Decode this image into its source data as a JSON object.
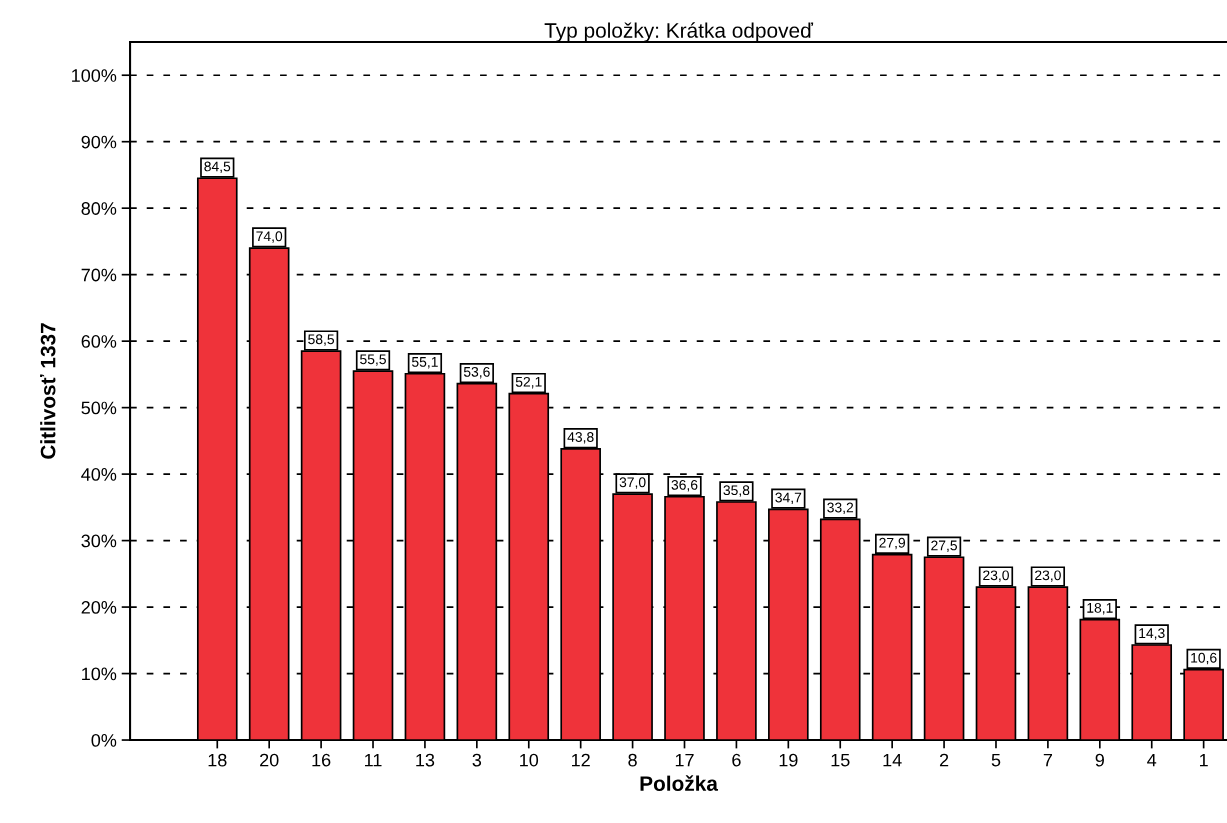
{
  "chart_data": {
    "type": "bar",
    "title": "Typ položky: Krátka odpoveď",
    "xlabel": "Položka",
    "ylabel": "Citlivosť 1337",
    "categories": [
      "18",
      "20",
      "16",
      "11",
      "13",
      "3",
      "10",
      "12",
      "8",
      "17",
      "6",
      "19",
      "15",
      "14",
      "2",
      "5",
      "7",
      "9",
      "4",
      "1"
    ],
    "values": [
      84.5,
      74.0,
      58.5,
      55.5,
      55.1,
      53.6,
      52.1,
      43.8,
      37.0,
      36.6,
      35.8,
      34.7,
      33.2,
      27.9,
      27.5,
      23.0,
      23.0,
      18.1,
      14.3,
      10.6
    ],
    "value_labels": [
      "84,5",
      "74,0",
      "58,5",
      "55,5",
      "55,1",
      "53,6",
      "52,1",
      "43,8",
      "37,0",
      "36,6",
      "35,8",
      "34,7",
      "33,2",
      "27,9",
      "27,5",
      "23,0",
      "23,0",
      "18,1",
      "14,3",
      "10,6"
    ],
    "color": "#ef333a",
    "ylim": [
      0,
      105
    ],
    "yticks": [
      {
        "value": 0,
        "label": "0%"
      },
      {
        "value": 10,
        "label": "10%"
      },
      {
        "value": 20,
        "label": "20%"
      },
      {
        "value": 30,
        "label": "30%"
      },
      {
        "value": 40,
        "label": "40%"
      },
      {
        "value": 50,
        "label": "50%"
      },
      {
        "value": 60,
        "label": "60%"
      },
      {
        "value": 70,
        "label": "70%"
      },
      {
        "value": 80,
        "label": "80%"
      },
      {
        "value": 90,
        "label": "90%"
      },
      {
        "value": 100,
        "label": "100%"
      }
    ],
    "grid": "y"
  }
}
